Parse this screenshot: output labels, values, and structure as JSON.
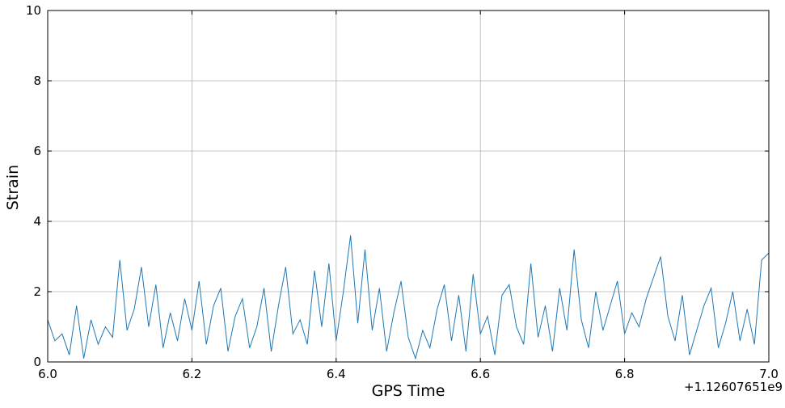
{
  "chart_data": {
    "type": "line",
    "x_label": "GPS Time",
    "y_label": "Strain",
    "x_offset_label": "+1.12607651e9",
    "xlim": [
      6,
      7
    ],
    "ylim": [
      0,
      10
    ],
    "xticks": [
      {
        "value": 6,
        "label": "6.0"
      },
      {
        "value": 6.2,
        "label": "6.2"
      },
      {
        "value": 6.4,
        "label": "6.4"
      },
      {
        "value": 6.6,
        "label": "6.6"
      },
      {
        "value": 6.8,
        "label": "6.8"
      },
      {
        "value": 7,
        "label": "7.0"
      }
    ],
    "yticks": [
      0,
      2,
      4,
      6,
      8,
      10
    ],
    "grid": true,
    "x": [
      6.0,
      6.01,
      6.02,
      6.03,
      6.04,
      6.05,
      6.06,
      6.07,
      6.08,
      6.09,
      6.1,
      6.11,
      6.12,
      6.13,
      6.14,
      6.15,
      6.16,
      6.17,
      6.18,
      6.19,
      6.2,
      6.21,
      6.22,
      6.23,
      6.24,
      6.25,
      6.26,
      6.27,
      6.28,
      6.29,
      6.3,
      6.31,
      6.32,
      6.33,
      6.34,
      6.35,
      6.36,
      6.37,
      6.38,
      6.39,
      6.4,
      6.41,
      6.42,
      6.43,
      6.44,
      6.45,
      6.46,
      6.47,
      6.48,
      6.49,
      6.5,
      6.51,
      6.52,
      6.53,
      6.54,
      6.55,
      6.56,
      6.57,
      6.58,
      6.59,
      6.6,
      6.61,
      6.62,
      6.63,
      6.64,
      6.65,
      6.66,
      6.67,
      6.68,
      6.69,
      6.7,
      6.71,
      6.72,
      6.73,
      6.74,
      6.75,
      6.76,
      6.77,
      6.78,
      6.79,
      6.8,
      6.81,
      6.82,
      6.83,
      6.84,
      6.85,
      6.86,
      6.87,
      6.88,
      6.89,
      6.9,
      6.91,
      6.92,
      6.93,
      6.94,
      6.95,
      6.96,
      6.97,
      6.98,
      6.99,
      7.0
    ],
    "series": [
      {
        "color": "#1f77b4",
        "values": [
          1.2,
          0.6,
          0.8,
          0.2,
          1.6,
          0.1,
          1.2,
          0.5,
          1.0,
          0.7,
          2.9,
          0.9,
          1.5,
          2.7,
          1.0,
          2.2,
          0.4,
          1.4,
          0.6,
          1.8,
          0.9,
          2.3,
          0.5,
          1.6,
          2.1,
          0.3,
          1.3,
          1.8,
          0.4,
          1.0,
          2.1,
          0.3,
          1.6,
          2.7,
          0.8,
          1.2,
          0.5,
          2.6,
          1.0,
          2.8,
          0.6,
          2.0,
          3.6,
          1.1,
          3.2,
          0.9,
          2.1,
          0.3,
          1.4,
          2.3,
          0.7,
          0.1,
          0.9,
          0.4,
          1.5,
          2.2,
          0.6,
          1.9,
          0.3,
          2.5,
          0.8,
          1.3,
          0.2,
          1.9,
          2.2,
          1.0,
          0.5,
          2.8,
          0.7,
          1.6,
          0.3,
          2.1,
          0.9,
          3.2,
          1.2,
          0.4,
          2.0,
          0.9,
          1.6,
          2.3,
          0.8,
          1.4,
          1.0,
          1.8,
          2.4,
          3.0,
          1.3,
          0.6,
          1.9,
          0.2,
          0.9,
          1.6,
          2.1,
          0.4,
          1.1,
          2.0,
          0.6,
          1.5,
          0.5,
          2.9,
          3.1
        ]
      }
    ]
  }
}
